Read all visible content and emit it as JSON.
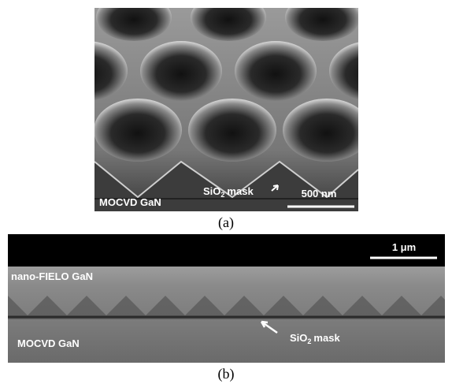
{
  "panel_a": {
    "label_left": "MOCVD GaN",
    "mask_label": {
      "main": "SiO",
      "sub": "2",
      "rest": "mask"
    },
    "scale_bar": "500 nm",
    "caption": "(a)"
  },
  "panel_b": {
    "scale_bar": "1 μm",
    "label_top": "nano-FIELO GaN",
    "label_bottom": "MOCVD GaN",
    "mask_label": {
      "main": "SiO",
      "sub": "2",
      "rest": "mask"
    },
    "caption": "(b)"
  }
}
